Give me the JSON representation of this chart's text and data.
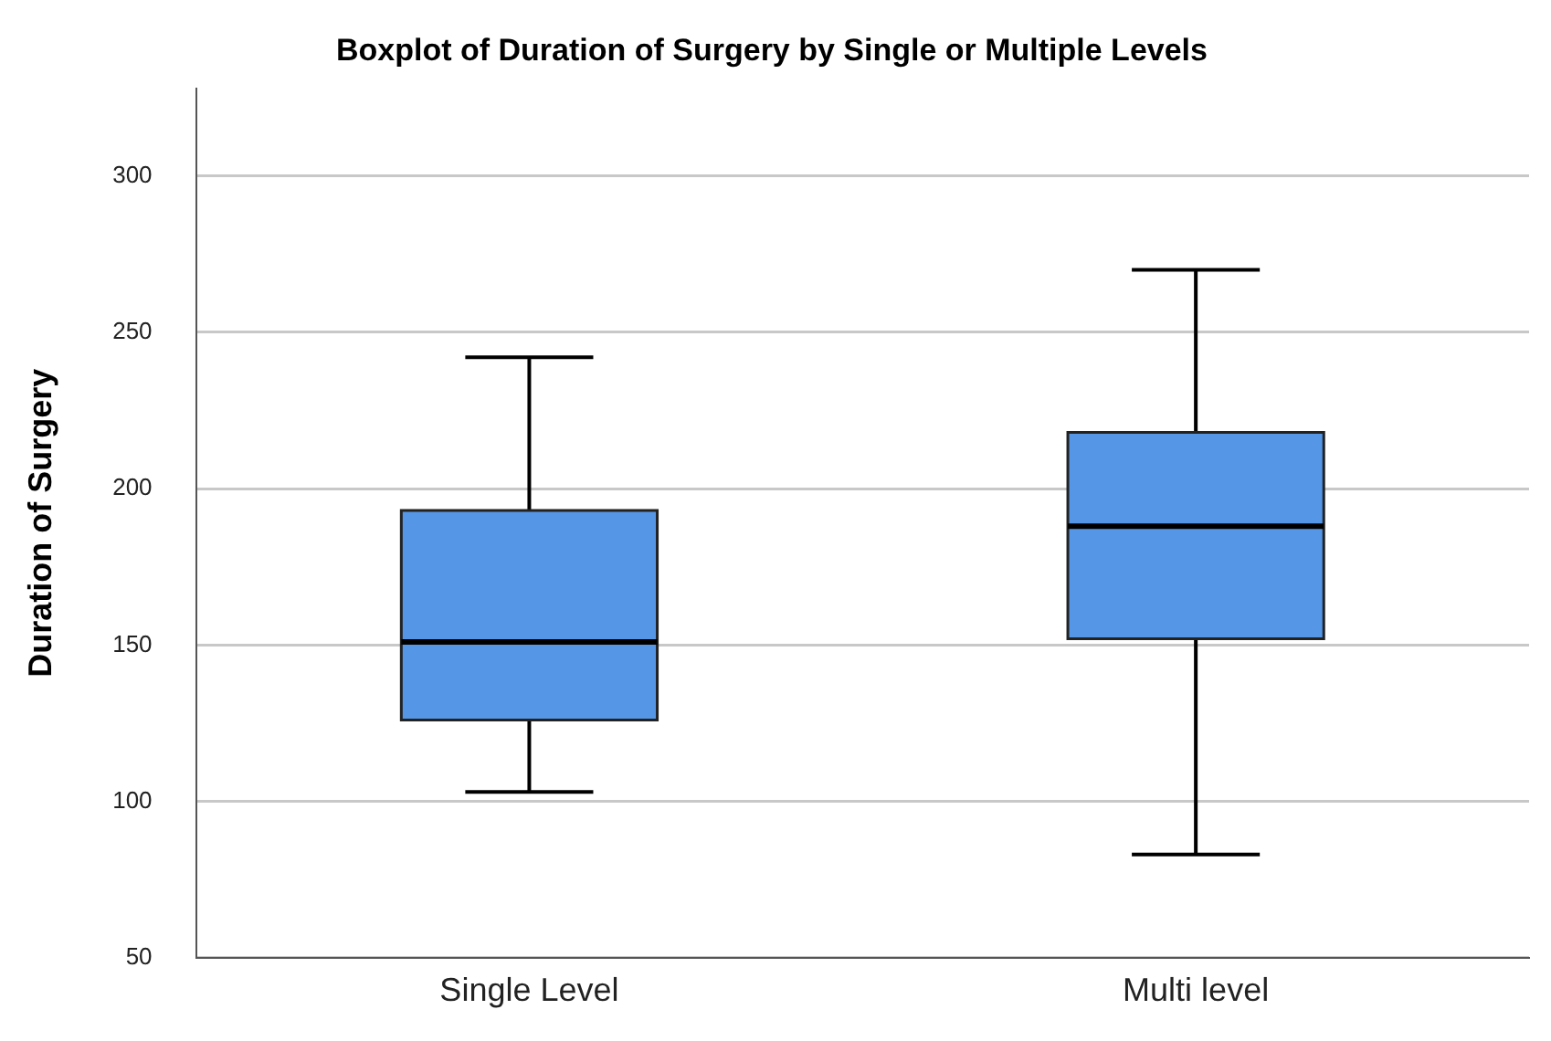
{
  "chart_data": {
    "type": "box",
    "title": "Boxplot of Duration of Surgery by Single or Multiple Levels",
    "ylabel": "Duration of Surgery",
    "categories": [
      "Single Level",
      "Multi level"
    ],
    "color": "#5596e6",
    "boxes": [
      {
        "low": 103,
        "q1": 126,
        "median": 151,
        "q3": 193,
        "high": 242
      },
      {
        "low": 83,
        "q1": 152,
        "median": 188,
        "q3": 218,
        "high": 270
      }
    ],
    "ylim": [
      50,
      328
    ],
    "yticks": [
      50,
      100,
      150,
      200,
      250,
      300
    ],
    "grid": "y",
    "legend": false
  }
}
